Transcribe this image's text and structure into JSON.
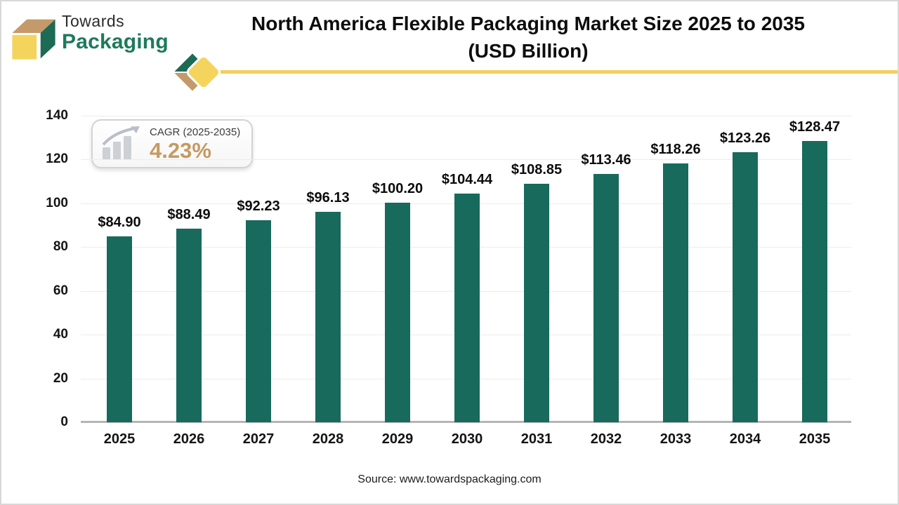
{
  "brand": {
    "name_top": "Towards",
    "name_bottom": "Packaging"
  },
  "title": {
    "line1": "North America Flexible Packaging Market Size 2025 to 2035",
    "line2": "(USD Billion)"
  },
  "cagr_badge": {
    "label": "CAGR (2025-2035)",
    "value": "4.23%",
    "value_color": "#c59a62"
  },
  "chart_data": {
    "type": "bar",
    "title": "North America Flexible Packaging Market Size 2025 to 2035 (USD Billion)",
    "unit": "USD Billion",
    "categories": [
      "2025",
      "2026",
      "2027",
      "2028",
      "2029",
      "2030",
      "2031",
      "2032",
      "2033",
      "2034",
      "2035"
    ],
    "values": [
      84.9,
      88.49,
      92.23,
      96.13,
      100.2,
      104.44,
      108.85,
      113.46,
      118.26,
      123.26,
      128.47
    ],
    "value_labels": [
      "$84.90",
      "$88.49",
      "$92.23",
      "$96.13",
      "$100.20",
      "$104.44",
      "$108.85",
      "$113.46",
      "$118.26",
      "$123.26",
      "$128.47"
    ],
    "xlabel": "",
    "ylabel": "",
    "ylim": [
      0,
      140
    ],
    "ytick_step": 20,
    "bar_color": "#186a5c",
    "grid": "horizontal",
    "legend": "none"
  },
  "source": {
    "text": "Source: www.towardspackaging.com"
  },
  "colors": {
    "brand_green": "#1d6a55",
    "brand_yellow": "#f5d45e",
    "brand_tan": "#c49a6a",
    "line_yellow": "#f2cf5e"
  }
}
